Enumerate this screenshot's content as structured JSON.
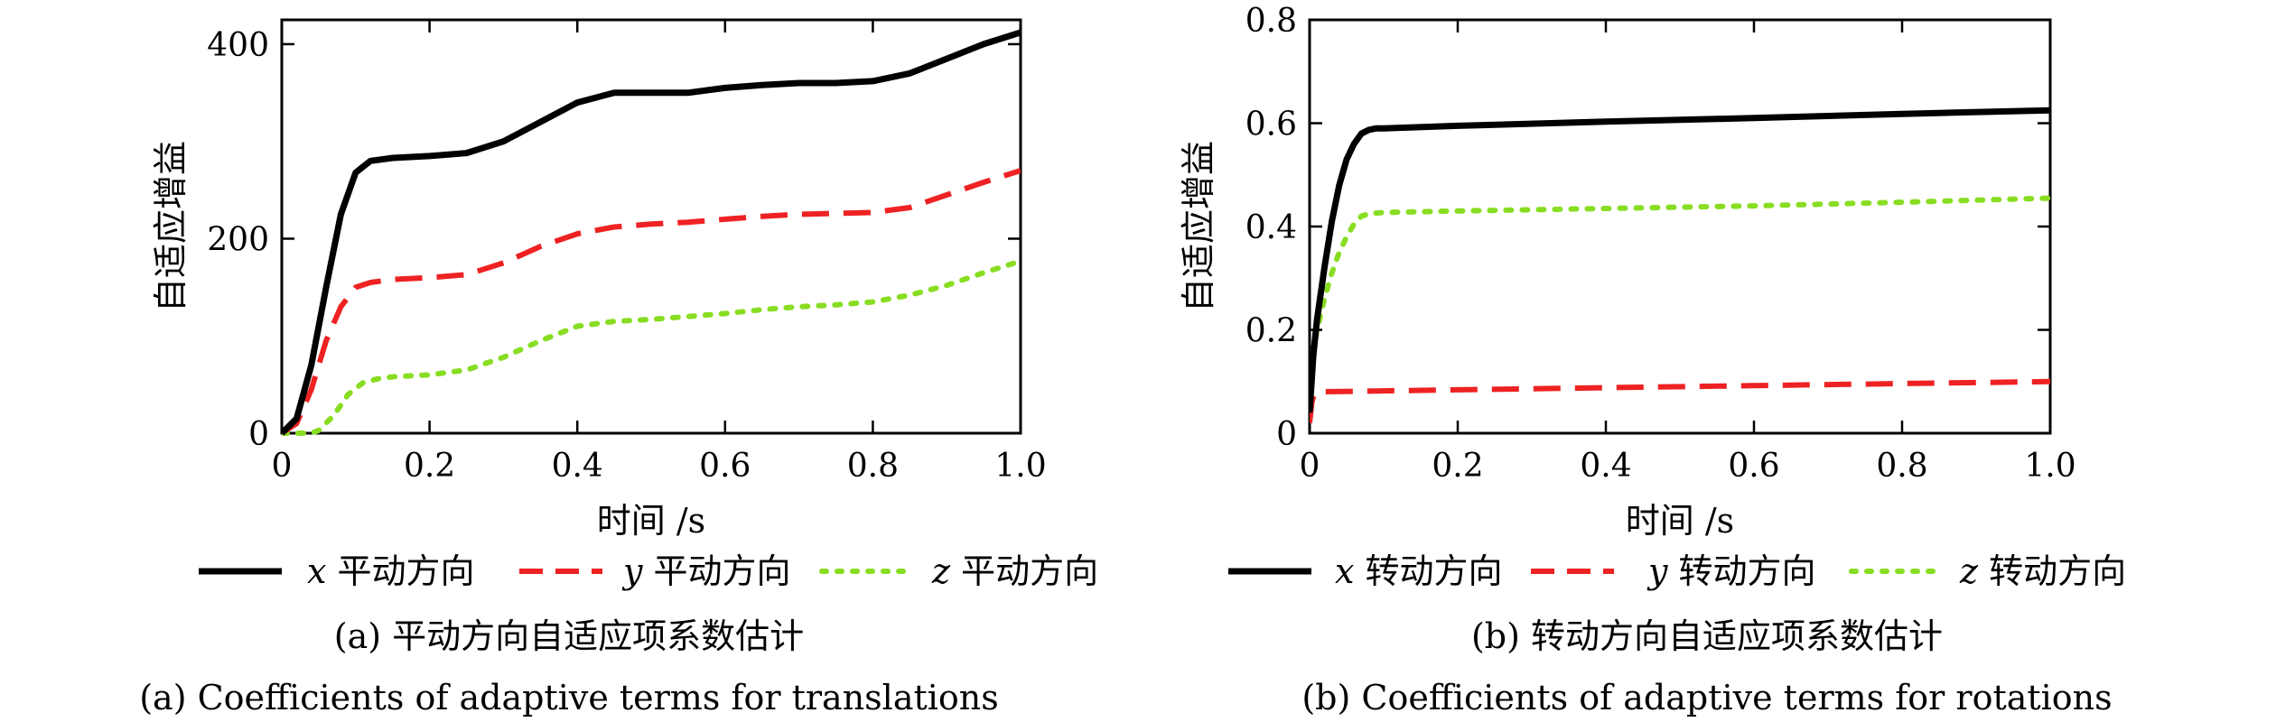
{
  "panels": [
    {
      "caption_cn": "(a) 平动方向自适应项系数估计",
      "caption_en": "(a) Coefficients of adaptive terms for translations",
      "chart_data": {
        "type": "line",
        "xlabel": "时间 /s",
        "ylabel": "自适应增益",
        "xlim": [
          0,
          1.0
        ],
        "ylim": [
          0,
          425
        ],
        "xticks": [
          0,
          0.2,
          0.4,
          0.6,
          0.8,
          1.0
        ],
        "xtick_labels": [
          "0",
          "0.2",
          "0.4",
          "0.6",
          "0.8",
          "1.0"
        ],
        "yticks": [
          0,
          200,
          400
        ],
        "ytick_labels": [
          "0",
          "200",
          "400"
        ],
        "legend_position": "below",
        "series": [
          {
            "var": "x",
            "name": "平动方向",
            "color": "#000000",
            "style": "solid",
            "x": [
              0,
              0.02,
              0.04,
              0.06,
              0.08,
              0.1,
              0.12,
              0.15,
              0.2,
              0.25,
              0.3,
              0.35,
              0.4,
              0.45,
              0.5,
              0.55,
              0.6,
              0.65,
              0.7,
              0.75,
              0.8,
              0.85,
              0.9,
              0.95,
              1.0
            ],
            "y": [
              0,
              15,
              70,
              150,
              225,
              268,
              280,
              283,
              285,
              288,
              300,
              320,
              340,
              350,
              350,
              350,
              355,
              358,
              360,
              360,
              362,
              370,
              385,
              400,
              412
            ]
          },
          {
            "var": "y",
            "name": "平动方向",
            "color": "#ee2222",
            "style": "dashed",
            "x": [
              0,
              0.02,
              0.04,
              0.06,
              0.08,
              0.1,
              0.12,
              0.15,
              0.2,
              0.25,
              0.3,
              0.35,
              0.4,
              0.45,
              0.5,
              0.55,
              0.6,
              0.65,
              0.7,
              0.75,
              0.8,
              0.85,
              0.9,
              0.95,
              1.0
            ],
            "y": [
              0,
              10,
              45,
              95,
              130,
              150,
              155,
              158,
              160,
              163,
              175,
              192,
              205,
              212,
              215,
              217,
              220,
              223,
              225,
              226,
              227,
              232,
              245,
              258,
              270
            ]
          },
          {
            "var": "z",
            "name": "平动方向",
            "color": "#88dd22",
            "style": "dotted",
            "x": [
              0,
              0.02,
              0.04,
              0.05,
              0.07,
              0.09,
              0.11,
              0.13,
              0.15,
              0.2,
              0.25,
              0.3,
              0.35,
              0.4,
              0.45,
              0.5,
              0.55,
              0.6,
              0.65,
              0.7,
              0.75,
              0.8,
              0.85,
              0.9,
              0.95,
              1.0
            ],
            "y": [
              0,
              0,
              0,
              3,
              18,
              40,
              52,
              56,
              58,
              60,
              65,
              78,
              95,
              110,
              115,
              117,
              120,
              123,
              127,
              130,
              132,
              135,
              142,
              152,
              165,
              177
            ]
          }
        ]
      }
    },
    {
      "caption_cn": "(b) 转动方向自适应项系数估计",
      "caption_en": "(b) Coefficients of adaptive terms for rotations",
      "chart_data": {
        "type": "line",
        "xlabel": "时间 /s",
        "ylabel": "自适应增益",
        "xlim": [
          0,
          1.0
        ],
        "ylim": [
          0,
          0.8
        ],
        "xticks": [
          0,
          0.2,
          0.4,
          0.6,
          0.8,
          1.0
        ],
        "xtick_labels": [
          "0",
          "0.2",
          "0.4",
          "0.6",
          "0.8",
          "1.0"
        ],
        "yticks": [
          0,
          0.2,
          0.4,
          0.6,
          0.8
        ],
        "ytick_labels": [
          "0",
          "0.2",
          "0.4",
          "0.6",
          "0.8"
        ],
        "legend_position": "below",
        "series": [
          {
            "var": "x",
            "name": "转动方向",
            "color": "#000000",
            "style": "solid",
            "x": [
              0,
              0.005,
              0.01,
              0.02,
              0.03,
              0.04,
              0.05,
              0.06,
              0.07,
              0.08,
              0.09,
              0.1,
              0.2,
              0.4,
              0.6,
              0.8,
              1.0
            ],
            "y": [
              0.04,
              0.15,
              0.22,
              0.32,
              0.41,
              0.48,
              0.53,
              0.56,
              0.58,
              0.587,
              0.59,
              0.59,
              0.595,
              0.603,
              0.61,
              0.618,
              0.625
            ]
          },
          {
            "var": "y",
            "name": "转动方向",
            "color": "#ee2222",
            "style": "dashed",
            "x": [
              0,
              0.003,
              0.006,
              0.01,
              0.2,
              0.4,
              0.6,
              0.8,
              1.0
            ],
            "y": [
              0.02,
              0.06,
              0.075,
              0.08,
              0.084,
              0.088,
              0.092,
              0.096,
              0.1
            ]
          },
          {
            "var": "z",
            "name": "转动方向",
            "color": "#88dd22",
            "style": "dotted",
            "x": [
              0,
              0.005,
              0.01,
              0.02,
              0.03,
              0.04,
              0.05,
              0.06,
              0.07,
              0.08,
              0.1,
              0.2,
              0.4,
              0.6,
              0.8,
              1.0
            ],
            "y": [
              0.06,
              0.16,
              0.2,
              0.26,
              0.31,
              0.35,
              0.38,
              0.405,
              0.42,
              0.425,
              0.427,
              0.43,
              0.435,
              0.44,
              0.447,
              0.455
            ]
          }
        ]
      }
    }
  ]
}
